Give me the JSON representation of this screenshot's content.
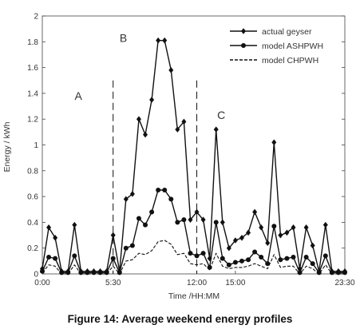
{
  "chart_data": {
    "type": "line",
    "caption": "Figure 14: Average weekend energy profiles",
    "xlabel": "Time /HH:MM",
    "ylabel": "Energy / kWh",
    "xlim": [
      0,
      23.5
    ],
    "ylim": [
      0,
      2
    ],
    "x_ticks": [
      {
        "value": 0,
        "label": "0:00"
      },
      {
        "value": 5.5,
        "label": "5:30"
      },
      {
        "value": 12,
        "label": "12:00"
      },
      {
        "value": 15,
        "label": "15:00"
      },
      {
        "value": 23.5,
        "label": "23:30"
      }
    ],
    "y_ticks": [
      0,
      0.2,
      0.4,
      0.6,
      0.8,
      1,
      1.2,
      1.4,
      1.6,
      1.8,
      2
    ],
    "y_tick_labels": [
      "0",
      "0.2",
      "0.4",
      "0.6",
      "0.8",
      "1",
      "1.2",
      "1.4",
      "1.6",
      "1.8",
      "2"
    ],
    "grid": false,
    "legend_position": "top-right",
    "x": [
      0,
      0.5,
      1,
      1.5,
      2,
      2.5,
      3,
      3.5,
      4,
      4.5,
      5,
      5.5,
      6,
      6.5,
      7,
      7.5,
      8,
      8.5,
      9,
      9.5,
      10,
      10.5,
      11,
      11.5,
      12,
      12.5,
      13,
      13.5,
      14,
      14.5,
      15,
      15.5,
      16,
      16.5,
      17,
      17.5,
      18,
      18.5,
      19,
      19.5,
      20,
      20.5,
      21,
      21.5,
      22,
      22.5,
      23,
      23.5
    ],
    "series": [
      {
        "name": "actual geyser",
        "style": "solid",
        "marker": "diamond",
        "values": [
          0.04,
          0.36,
          0.28,
          0.02,
          0.02,
          0.38,
          0.02,
          0.02,
          0.02,
          0.02,
          0.02,
          0.3,
          0.02,
          0.58,
          0.62,
          1.2,
          1.08,
          1.35,
          1.81,
          1.81,
          1.58,
          1.12,
          1.18,
          0.42,
          0.48,
          0.42,
          0.12,
          1.12,
          0.4,
          0.2,
          0.26,
          0.28,
          0.32,
          0.48,
          0.36,
          0.24,
          1.02,
          0.3,
          0.32,
          0.36,
          0.04,
          0.36,
          0.22,
          0.02,
          0.38,
          0.02,
          0.02,
          0.02
        ]
      },
      {
        "name": "model ASHPWH",
        "style": "solid",
        "marker": "circle",
        "values": [
          0.02,
          0.13,
          0.12,
          0.01,
          0.01,
          0.14,
          0.01,
          0.01,
          0.01,
          0.01,
          0.01,
          0.12,
          0.01,
          0.2,
          0.22,
          0.43,
          0.38,
          0.48,
          0.65,
          0.65,
          0.58,
          0.4,
          0.42,
          0.16,
          0.14,
          0.16,
          0.05,
          0.4,
          0.12,
          0.07,
          0.09,
          0.1,
          0.11,
          0.17,
          0.13,
          0.08,
          0.37,
          0.11,
          0.12,
          0.13,
          0.01,
          0.13,
          0.08,
          0.01,
          0.14,
          0.01,
          0.01,
          0.01
        ]
      },
      {
        "name": "model CHPWH",
        "style": "dashed",
        "marker": "none",
        "values": [
          0.01,
          0.07,
          0.06,
          0.0,
          0.0,
          0.07,
          0.0,
          0.0,
          0.0,
          0.0,
          0.0,
          0.06,
          0.0,
          0.1,
          0.11,
          0.16,
          0.15,
          0.18,
          0.25,
          0.26,
          0.23,
          0.15,
          0.16,
          0.08,
          0.07,
          0.08,
          0.03,
          0.16,
          0.06,
          0.04,
          0.05,
          0.05,
          0.06,
          0.08,
          0.06,
          0.04,
          0.15,
          0.05,
          0.06,
          0.06,
          0.0,
          0.06,
          0.04,
          0.0,
          0.07,
          0.0,
          0.0,
          0.0
        ]
      }
    ],
    "vertical_markers": [
      5.5,
      12
    ],
    "annotations": [
      {
        "text": "A",
        "x": 2.8,
        "y": 1.35
      },
      {
        "text": "B",
        "x": 6.3,
        "y": 1.8
      },
      {
        "text": "C",
        "x": 13.9,
        "y": 1.2
      }
    ],
    "colors": {
      "lines": "#111111",
      "axis": "#444444",
      "text": "#333333"
    }
  }
}
